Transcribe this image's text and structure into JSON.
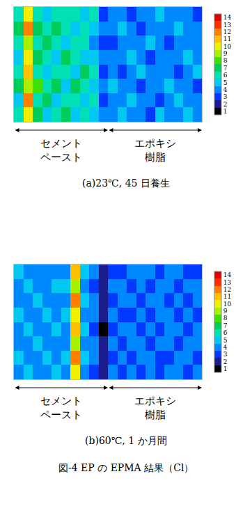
{
  "chart_data": [
    {
      "type": "heatmap",
      "caption": "(a)23℃, 45 日養生",
      "tick_labels": false,
      "xlim": [
        -0.5,
        19.5
      ],
      "ylim": [
        -0.5,
        7.5
      ],
      "regions": [
        {
          "label": "セメント\nペースト",
          "start": -0.5,
          "end": 9.5
        },
        {
          "label": "エポキシ\n樹脂",
          "start": 9.5,
          "end": 19.5
        }
      ],
      "cells": [
        [
          6,
          10,
          7,
          5,
          6,
          7,
          5,
          6,
          5,
          4,
          4,
          5,
          4,
          4,
          3,
          5,
          4,
          4,
          5,
          4
        ],
        [
          5,
          12,
          6,
          7,
          5,
          6,
          6,
          5,
          6,
          3,
          4,
          4,
          5,
          4,
          4,
          3,
          4,
          5,
          4,
          4
        ],
        [
          7,
          9,
          8,
          6,
          7,
          5,
          7,
          6,
          5,
          4,
          5,
          4,
          4,
          3,
          4,
          4,
          5,
          4,
          4,
          3
        ],
        [
          6,
          11,
          6,
          5,
          6,
          6,
          5,
          7,
          6,
          3,
          4,
          3,
          4,
          5,
          4,
          4,
          4,
          3,
          4,
          5
        ],
        [
          5,
          10,
          7,
          6,
          5,
          7,
          6,
          5,
          5,
          4,
          4,
          4,
          5,
          4,
          3,
          4,
          4,
          4,
          5,
          4
        ],
        [
          6,
          9,
          6,
          7,
          6,
          5,
          6,
          6,
          4,
          3,
          3,
          4,
          4,
          4,
          5,
          4,
          3,
          4,
          4,
          4
        ],
        [
          7,
          12,
          7,
          6,
          7,
          6,
          5,
          6,
          5,
          4,
          4,
          5,
          4,
          3,
          4,
          4,
          4,
          5,
          4,
          4
        ],
        [
          6,
          10,
          6,
          5,
          6,
          6,
          6,
          5,
          6,
          3,
          4,
          4,
          3,
          4,
          4,
          5,
          4,
          4,
          4,
          3
        ]
      ],
      "colorbar": {
        "range": [
          0.5,
          14.5
        ],
        "ticks": [
          1,
          2,
          3,
          4,
          5,
          6,
          7,
          8,
          9,
          10,
          11,
          12,
          13,
          14
        ]
      }
    },
    {
      "type": "heatmap",
      "caption": "(b)60℃, 1 か月間",
      "tick_labels": false,
      "xlim": [
        -0.5,
        19.5
      ],
      "ylim": [
        -0.5,
        7.5
      ],
      "regions": [
        {
          "label": "セメント\nペースト",
          "start": -0.5,
          "end": 9.5
        },
        {
          "label": "エポキシ\n樹脂",
          "start": 9.5,
          "end": 19.5
        }
      ],
      "cells": [
        [
          4,
          5,
          4,
          4,
          5,
          4,
          10,
          4,
          3,
          2,
          4,
          3,
          4,
          3,
          4,
          3,
          4,
          4,
          3,
          4
        ],
        [
          5,
          4,
          4,
          5,
          4,
          5,
          12,
          5,
          4,
          2,
          3,
          4,
          3,
          4,
          4,
          3,
          3,
          4,
          4,
          3
        ],
        [
          4,
          4,
          5,
          4,
          4,
          4,
          9,
          4,
          4,
          2,
          4,
          3,
          4,
          4,
          3,
          4,
          4,
          3,
          4,
          4
        ],
        [
          4,
          5,
          4,
          4,
          5,
          4,
          11,
          5,
          3,
          1,
          3,
          4,
          4,
          3,
          4,
          3,
          4,
          4,
          3,
          4
        ],
        [
          5,
          4,
          4,
          5,
          4,
          5,
          10,
          4,
          4,
          2,
          4,
          3,
          3,
          4,
          3,
          4,
          4,
          3,
          4,
          3
        ],
        [
          4,
          4,
          5,
          4,
          4,
          4,
          12,
          5,
          4,
          2,
          3,
          4,
          4,
          3,
          4,
          4,
          3,
          4,
          3,
          4
        ],
        [
          4,
          5,
          4,
          4,
          5,
          5,
          9,
          4,
          3,
          2,
          4,
          4,
          3,
          4,
          3,
          4,
          4,
          3,
          4,
          4
        ],
        [
          5,
          4,
          4,
          4,
          4,
          4,
          11,
          5,
          4,
          2,
          3,
          3,
          4,
          4,
          4,
          3,
          4,
          4,
          3,
          3
        ]
      ],
      "colorbar": {
        "range": [
          0.5,
          14.5
        ],
        "ticks": [
          1,
          2,
          3,
          4,
          5,
          6,
          7,
          8,
          9,
          10,
          11,
          12,
          13,
          14
        ]
      }
    }
  ],
  "caption": "図-4 EP の EPMA 結果（Cl）"
}
